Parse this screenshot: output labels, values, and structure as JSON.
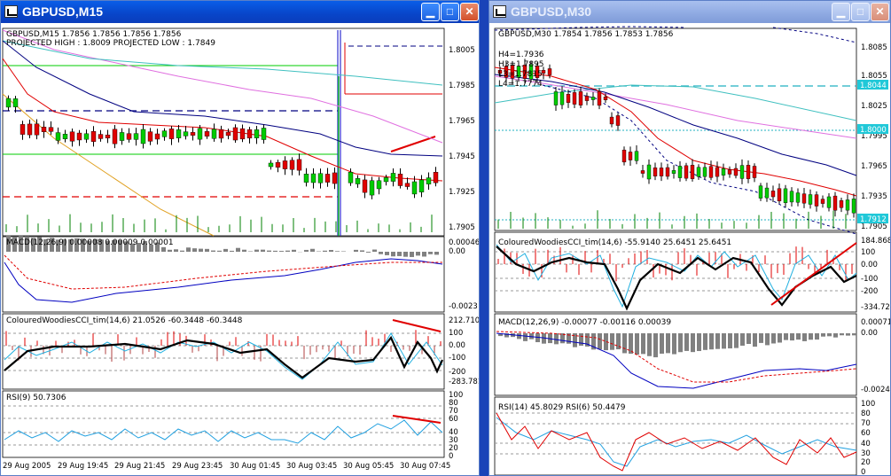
{
  "left_window": {
    "title": "GBPUSD,M15",
    "price_header": "GBPUSD,M15  1.7856 1.7856 1.7856 1.7856",
    "projection_line": "PROJECTED HIGH : 1.8009  PROJECTED LOW : 1.7849",
    "price_axis": [
      "1.8005",
      "1.7985",
      "1.7965",
      "1.7945",
      "1.7925",
      "1.7905"
    ],
    "macd_label": "MACD(12,26,9) 0.00008 0.00009 0.00001",
    "macd_axis": [
      "0.00046",
      "0.00",
      "-0.0023"
    ],
    "cci_label": "ColouredWoodiesCCI_tim(14,6) 21.0526 -60.3448 -60.3448",
    "cci_axis": [
      "212.7108",
      "100",
      "0.00",
      "-100",
      "-200",
      "-283.781"
    ],
    "rsi_label": "RSI(9) 50.7306",
    "rsi_axis": [
      "100",
      "80",
      "70",
      "60",
      "40",
      "30",
      "20",
      "0"
    ],
    "time_axis": [
      "29 Aug 2005",
      "29 Aug 19:45",
      "29 Aug 21:45",
      "29 Aug 23:45",
      "30 Aug 01:45",
      "30 Aug 03:45",
      "30 Aug 05:45",
      "30 Aug 07:45"
    ]
  },
  "right_window": {
    "title": "GBPUSD,M30",
    "price_header": "GBPUSD,M30  1.7854 1.7856 1.7853 1.7856",
    "pivot_labels": [
      "H4=1.7936",
      "H3=1.7895",
      "L3=1.7815",
      "L4=1.7774"
    ],
    "price_axis": [
      "1.8085",
      "1.8055",
      "1.8025",
      "1.7995",
      "1.7965",
      "1.7935",
      "1.7905"
    ],
    "price_tags": [
      "1.8044",
      "1.8000",
      "1.7912"
    ],
    "cci_label": "ColouredWoodiesCCI_tim(14,6) -55.9140 25.6451 25.6451",
    "cci_axis": [
      "184.8681",
      "100",
      "0.00",
      "-100",
      "-200",
      "-334.729"
    ],
    "macd_label": "MACD(12,26,9) -0.00077 -0.00116 0.00039",
    "macd_axis": [
      "0.00071",
      "0.00",
      "-0.00249"
    ],
    "rsi_label": "RSI(14) 45.8029  RSI(6) 50.4479",
    "rsi_axis": [
      "100",
      "80",
      "70",
      "60",
      "40",
      "30",
      "20",
      "0"
    ]
  },
  "colors": {
    "bull": "#00cc00",
    "bear": "#e00000",
    "ma_fast": "#e00000",
    "ma_slow": "#000080",
    "ma_magenta": "#e070e0",
    "ma_teal": "#40c0c0",
    "pivot": "#20b0c0",
    "titlebar_active": "#0845c9",
    "titlebar_inactive": "#8ea9e2"
  }
}
